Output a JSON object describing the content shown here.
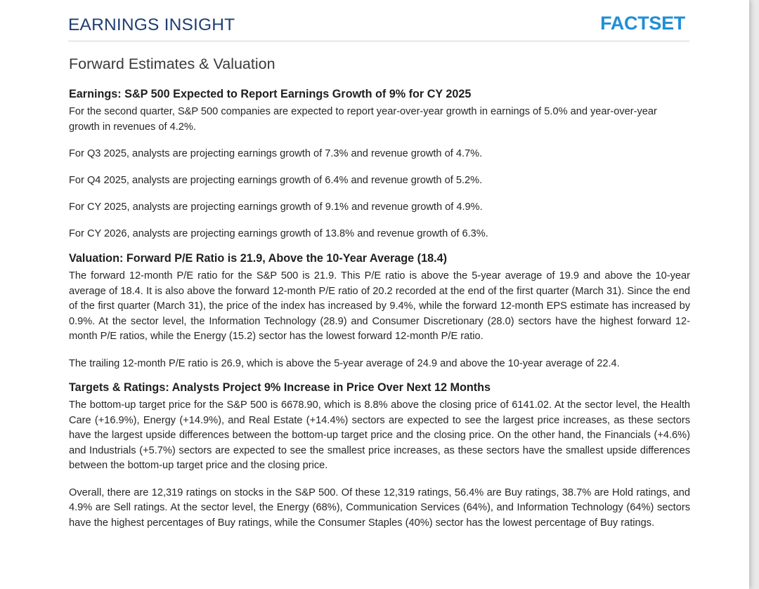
{
  "header": {
    "title": "EARNINGS INSIGHT",
    "logo_text": "FACTSET",
    "title_color": "#1f3f73",
    "logo_color": "#1f8fd7"
  },
  "section": {
    "title": "Forward Estimates & Valuation"
  },
  "earnings": {
    "heading": "Earnings: S&P 500 Expected to Report Earnings Growth of 9% for CY 2025",
    "p1": "For the second quarter, S&P 500 companies are expected to report year-over-year growth in earnings of 5.0% and year-over-year growth in revenues of 4.2%.",
    "p2": "For Q3 2025, analysts are projecting earnings growth of 7.3% and revenue growth of 4.7%.",
    "p3": "For Q4 2025, analysts are projecting earnings growth of 6.4% and revenue growth of 5.2%.",
    "p4": "For CY 2025, analysts are projecting earnings growth of 9.1% and revenue growth of 4.9%.",
    "p5": "For CY 2026, analysts are projecting earnings growth of 13.8% and revenue growth of 6.3%."
  },
  "valuation": {
    "heading": "Valuation: Forward P/E Ratio is 21.9, Above the 10-Year Average (18.4)",
    "p1": "The forward 12-month P/E ratio for the S&P 500 is 21.9. This P/E ratio is above the 5-year average of 19.9 and above the 10-year average of 18.4. It is also above the forward 12-month P/E ratio of 20.2 recorded at the end of the first quarter (March 31). Since the end of the first quarter (March 31), the price of the index has increased by 9.4%, while the forward 12-month EPS estimate has increased by 0.9%. At the sector level, the Information Technology (28.9) and Consumer Discretionary (28.0) sectors have the highest forward 12-month P/E ratios, while the Energy (15.2) sector has the lowest forward 12-month P/E ratio.",
    "p2": "The trailing 12-month P/E ratio is 26.9, which is above the 5-year average of 24.9 and above the 10-year average of 22.4."
  },
  "targets": {
    "heading": "Targets & Ratings: Analysts Project 9% Increase in Price Over Next 12 Months",
    "p1": "The bottom-up target price for the S&P 500 is 6678.90, which is 8.8% above the closing price of 6141.02. At the sector level, the Health Care (+16.9%), Energy (+14.9%), and Real Estate (+14.4%) sectors are expected to see the largest price increases, as these sectors have the largest upside differences between the bottom-up target price and the closing price. On the other hand, the Financials (+4.6%) and Industrials (+5.7%) sectors are expected to see the smallest price increases, as these sectors have the smallest upside differences between the bottom-up target price and the closing price.",
    "p2": "Overall, there are 12,319 ratings on stocks in the S&P 500. Of these 12,319 ratings, 56.4% are Buy ratings, 38.7% are Hold ratings, and 4.9% are Sell ratings. At the sector level, the Energy (68%), Communication Services (64%), and Information Technology (64%) sectors have the highest percentages of Buy ratings, while the Consumer Staples (40%) sector has the lowest percentage of Buy ratings."
  }
}
